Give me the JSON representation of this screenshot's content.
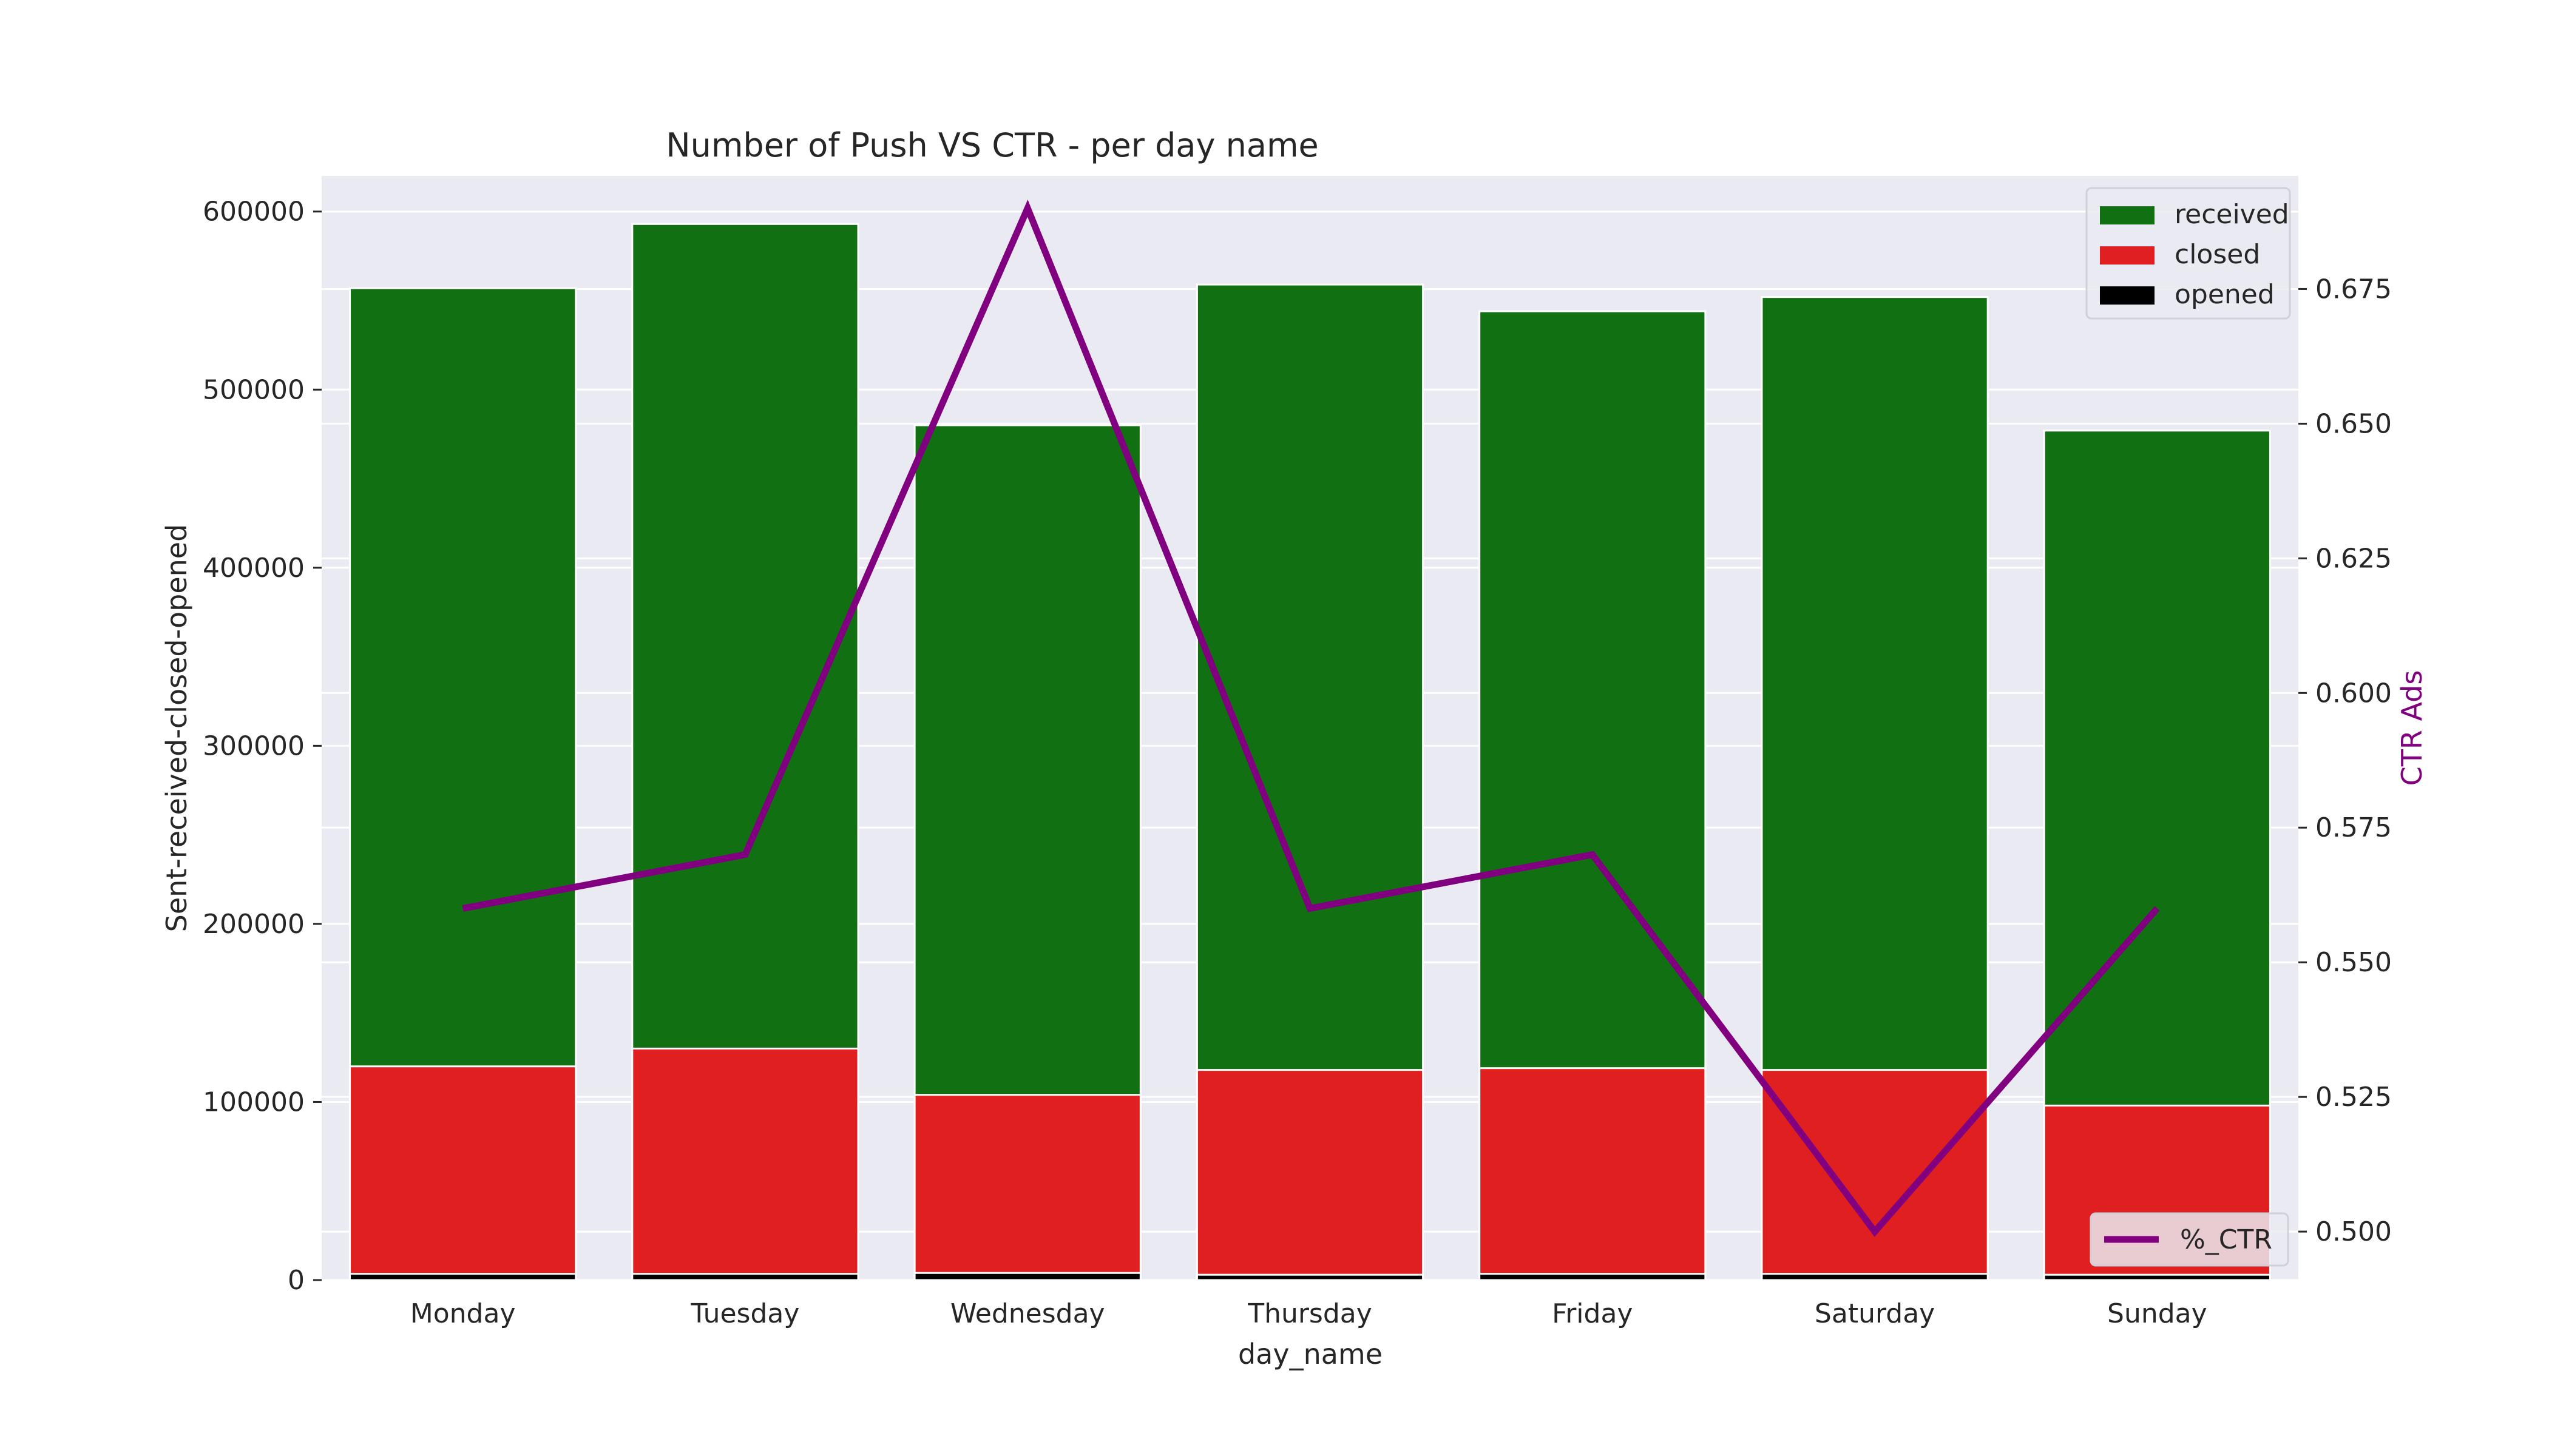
{
  "chart_data": {
    "type": "bar",
    "title": "Number of Push VS CTR - per day name",
    "xlabel": "day_name",
    "ylabel": "Sent-received-closed-opened",
    "y2label": "CTR Ads",
    "categories": [
      "Monday",
      "Tuesday",
      "Wednesday",
      "Thursday",
      "Friday",
      "Saturday",
      "Sunday"
    ],
    "ylim": [
      0,
      620000
    ],
    "yticks": [
      0,
      100000,
      200000,
      300000,
      400000,
      500000,
      600000
    ],
    "y2lim": [
      0.491,
      0.696
    ],
    "y2ticks": [
      0.5,
      0.525,
      0.55,
      0.575,
      0.6,
      0.625,
      0.65,
      0.675
    ],
    "grid": true,
    "series": [
      {
        "name": "received",
        "kind": "bar",
        "color": "#117011",
        "values": [
          557000,
          593000,
          480000,
          559000,
          544000,
          552000,
          477000
        ]
      },
      {
        "name": "closed",
        "kind": "bar",
        "color": "#e02020",
        "values": [
          120000,
          130000,
          104000,
          118000,
          119000,
          118000,
          98000
        ]
      },
      {
        "name": "opened",
        "kind": "bar",
        "color": "#000000",
        "values": [
          3500,
          3500,
          4000,
          3000,
          3500,
          3500,
          3000
        ]
      },
      {
        "name": "%_CTR",
        "kind": "line",
        "axis": "right",
        "color": "#800080",
        "values": [
          0.56,
          0.57,
          0.69,
          0.56,
          0.57,
          0.5,
          0.56
        ]
      }
    ],
    "legend_bars": {
      "position": "top-right",
      "entries": [
        "received",
        "closed",
        "opened"
      ]
    },
    "legend_line": {
      "position": "bottom-right",
      "entries": [
        "%_CTR"
      ]
    }
  }
}
